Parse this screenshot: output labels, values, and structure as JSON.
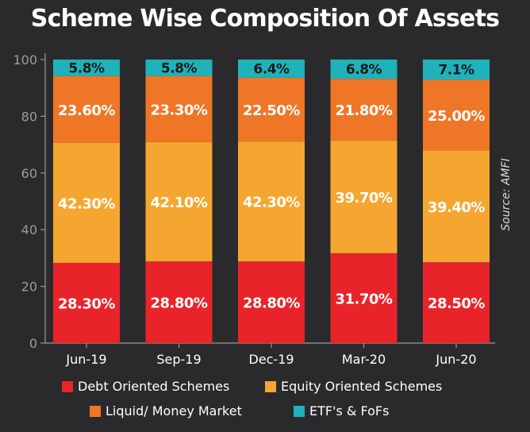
{
  "chart_data": {
    "type": "bar",
    "stacked": true,
    "title": "Scheme Wise Composition Of Assets",
    "source": "Source: AMFI",
    "categories": [
      "Jun-19",
      "Sep-19",
      "Dec-19",
      "Mar-20",
      "Jun-20"
    ],
    "yticks": [
      "0",
      "20",
      "40",
      "60",
      "80",
      "100"
    ],
    "ylim": [
      0,
      100
    ],
    "grid": false,
    "legend_position": "bottom",
    "series": [
      {
        "name": "Debt Oriented Schemes",
        "color": "#e8242a",
        "values": [
          28.3,
          28.8,
          28.8,
          31.7,
          28.5
        ],
        "labels": [
          "28.30%",
          "28.80%",
          "28.80%",
          "31.70%",
          "28.50%"
        ]
      },
      {
        "name": "Equity Oriented Schemes",
        "color": "#f5a630",
        "values": [
          42.3,
          42.1,
          42.3,
          39.7,
          39.4
        ],
        "labels": [
          "42.30%",
          "42.10%",
          "42.30%",
          "39.70%",
          "39.40%"
        ]
      },
      {
        "name": "Liquid/ Money Market",
        "color": "#ee7626",
        "values": [
          23.6,
          23.3,
          22.5,
          21.8,
          25.0
        ],
        "labels": [
          "23.60%",
          "23.30%",
          "22.50%",
          "21.80%",
          "25.00%"
        ]
      },
      {
        "name": "ETF's & FoFs",
        "color": "#1fb2bb",
        "values": [
          5.8,
          5.8,
          6.4,
          6.8,
          7.1
        ],
        "labels": [
          "5.8%",
          "5.8%",
          "6.4%",
          "6.8%",
          "7.1%"
        ]
      }
    ]
  }
}
